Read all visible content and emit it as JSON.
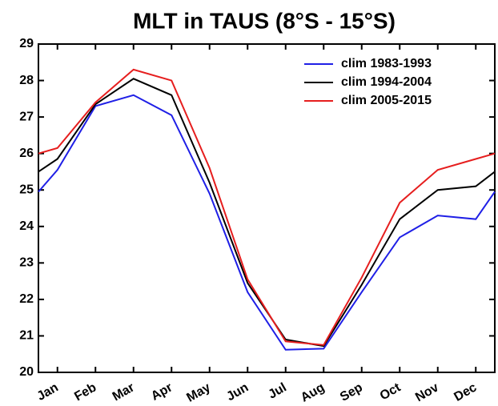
{
  "chart_data": {
    "type": "line",
    "title": "MLT in TAUS (8°S - 15°S)",
    "x": [
      0.5,
      1,
      2,
      3,
      4,
      5,
      6,
      7,
      8,
      9,
      10,
      11,
      12,
      12.5
    ],
    "xlim": [
      0.5,
      12.5
    ],
    "xticks": [
      {
        "value": 1,
        "label": "Jan"
      },
      {
        "value": 2,
        "label": "Feb"
      },
      {
        "value": 3,
        "label": "Mar"
      },
      {
        "value": 4,
        "label": "Apr"
      },
      {
        "value": 5,
        "label": "May"
      },
      {
        "value": 6,
        "label": "Jun"
      },
      {
        "value": 7,
        "label": "Jul"
      },
      {
        "value": 8,
        "label": "Aug"
      },
      {
        "value": 9,
        "label": "Sep"
      },
      {
        "value": 10,
        "label": "Oct"
      },
      {
        "value": 11,
        "label": "Nov"
      },
      {
        "value": 12,
        "label": "Dec"
      }
    ],
    "ylim": [
      20,
      29
    ],
    "yticks": [
      20,
      21,
      22,
      23,
      24,
      25,
      26,
      27,
      28,
      29
    ],
    "legend": "upper right",
    "series": [
      {
        "name": "clim 1983-1993",
        "color": "#1f1fe6",
        "values": [
          24.95,
          25.55,
          27.3,
          27.6,
          27.05,
          24.9,
          22.2,
          20.62,
          20.65,
          22.2,
          23.7,
          24.3,
          24.2,
          24.95
        ]
      },
      {
        "name": "clim 1994-2004",
        "color": "#000000",
        "values": [
          25.5,
          25.85,
          27.35,
          28.05,
          27.6,
          25.2,
          22.45,
          20.9,
          20.72,
          22.4,
          24.2,
          25.0,
          25.1,
          25.5
        ]
      },
      {
        "name": "clim 2005-2015",
        "color": "#e61e1e",
        "values": [
          26.0,
          26.15,
          27.4,
          28.3,
          28.0,
          25.6,
          22.55,
          20.85,
          20.75,
          22.6,
          24.65,
          25.55,
          25.85,
          26.0
        ]
      }
    ]
  }
}
